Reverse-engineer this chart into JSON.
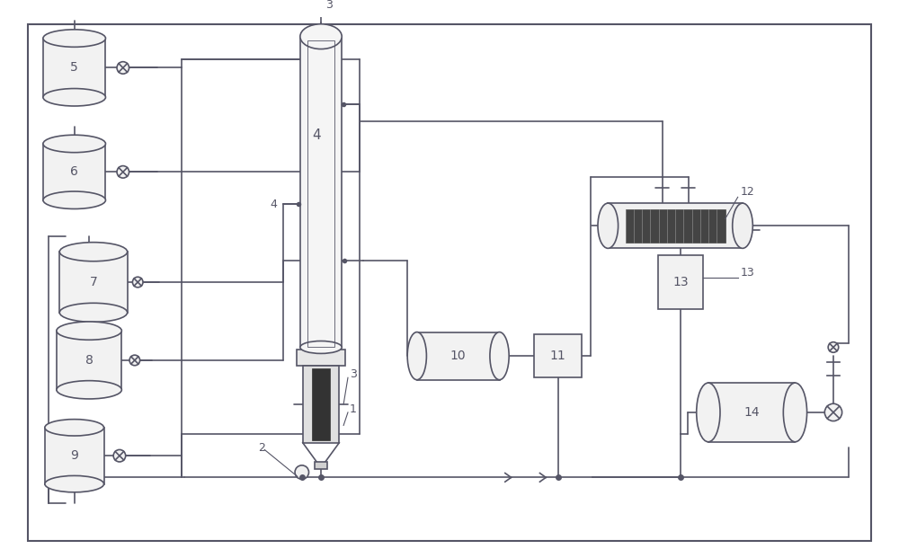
{
  "bg_color": "#ffffff",
  "line_color": "#555566",
  "line_width": 1.2,
  "fig_width": 10.0,
  "fig_height": 6.11,
  "dpi": 100
}
